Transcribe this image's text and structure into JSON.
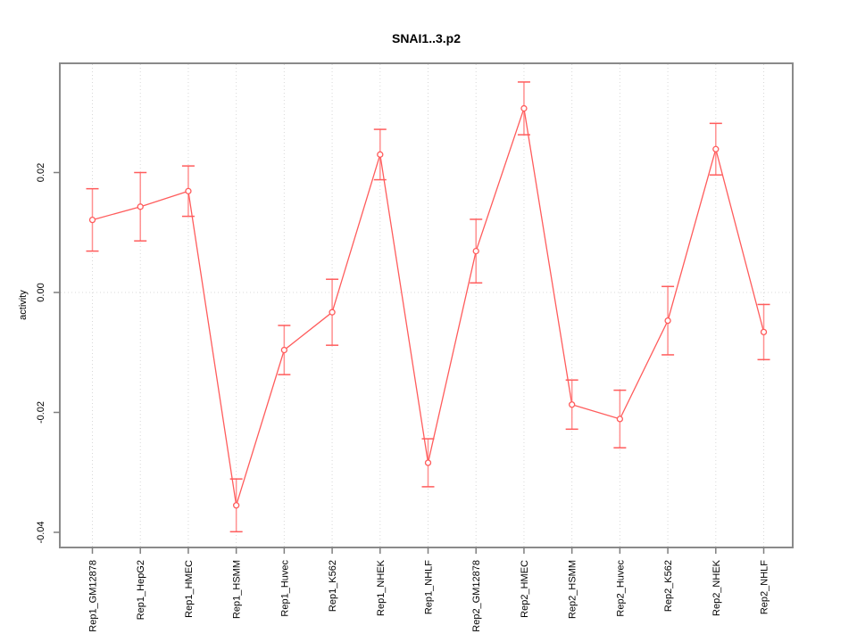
{
  "page": {
    "background": "#ffffff"
  },
  "chart_data": {
    "type": "line",
    "title": "SNAI1..3.p2",
    "xlabel": "",
    "ylabel": "activity",
    "categories": [
      "Rep1_GM12878",
      "Rep1_HepG2",
      "Rep1_HMEC",
      "Rep1_HSMM",
      "Rep1_Huvec",
      "Rep1_K562",
      "Rep1_NHEK",
      "Rep1_NHLF",
      "Rep2_GM12878",
      "Rep2_HMEC",
      "Rep2_HSMM",
      "Rep2_Huvec",
      "Rep2_K562",
      "Rep2_NHEK",
      "Rep2_NHLF"
    ],
    "series": [
      {
        "name": "activity",
        "marker": "open-circle",
        "values": [
          0.0121,
          0.0143,
          0.0169,
          -0.0355,
          -0.0096,
          -0.0033,
          0.023,
          -0.0284,
          0.0069,
          0.0307,
          -0.0187,
          -0.0211,
          -0.0047,
          0.0239,
          -0.0066
        ],
        "errors": [
          0.0052,
          0.0057,
          0.0042,
          0.0044,
          0.0041,
          0.0055,
          0.0042,
          0.004,
          0.0053,
          0.0044,
          0.0041,
          0.0048,
          0.0057,
          0.0043,
          0.0046
        ]
      }
    ],
    "yticks": {
      "labels": [
        "0.02",
        "0.00",
        "-0.02",
        "-0.04"
      ],
      "values": [
        0.02,
        0.0,
        -0.02,
        -0.04
      ]
    },
    "ylim": [
      -0.0425,
      0.0382
    ],
    "legend": "none",
    "grid": {
      "vertical_per_category": true,
      "horizontal_zero_line": true,
      "style": "dotted"
    },
    "style": {
      "line_color": "#ff5c5c",
      "error_bar_color": "#ff9090",
      "grid_color": "#d8d8d8",
      "box_color": "#8a8a8a",
      "tick_color": "#7f7f7f",
      "text_color": "#000000"
    }
  }
}
